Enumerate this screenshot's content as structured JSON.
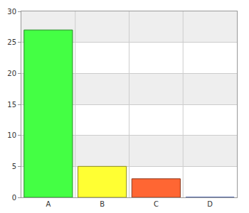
{
  "chart_data": {
    "type": "bar",
    "categories": [
      "A",
      "B",
      "C",
      "D"
    ],
    "values": [
      27,
      5,
      3,
      0
    ],
    "colors": [
      "#44ff44",
      "#ffff33",
      "#ff6633",
      "#3366ff"
    ],
    "ylim": [
      0,
      30
    ],
    "yticks": [
      0,
      5,
      10,
      15,
      20,
      25,
      30
    ],
    "grid": true
  }
}
